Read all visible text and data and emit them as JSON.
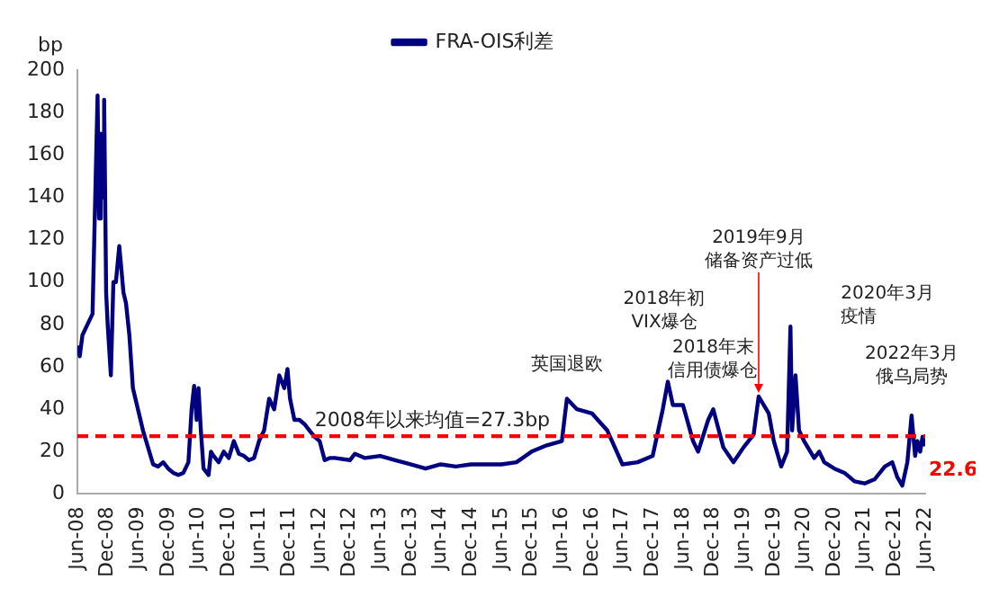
{
  "chart_data": {
    "type": "line",
    "ylabel": "bp",
    "legend": "top",
    "grid": false,
    "marker": "none",
    "line_style": "solid",
    "xlim": [
      "2008-06",
      "2022-06"
    ],
    "xticks": [
      {
        "value": "2008-06",
        "label": "Jun-08"
      },
      {
        "value": "2008-12",
        "label": "Dec-08"
      },
      {
        "value": "2009-06",
        "label": "Jun-09"
      },
      {
        "value": "2009-12",
        "label": "Dec-09"
      },
      {
        "value": "2010-06",
        "label": "Jun-10"
      },
      {
        "value": "2010-12",
        "label": "Dec-10"
      },
      {
        "value": "2011-06",
        "label": "Jun-11"
      },
      {
        "value": "2011-12",
        "label": "Dec-11"
      },
      {
        "value": "2012-06",
        "label": "Jun-12"
      },
      {
        "value": "2012-12",
        "label": "Dec-12"
      },
      {
        "value": "2013-06",
        "label": "Jun-13"
      },
      {
        "value": "2013-12",
        "label": "Dec-13"
      },
      {
        "value": "2014-06",
        "label": "Jun-14"
      },
      {
        "value": "2014-12",
        "label": "Dec-14"
      },
      {
        "value": "2015-06",
        "label": "Jun-15"
      },
      {
        "value": "2015-12",
        "label": "Dec-15"
      },
      {
        "value": "2016-06",
        "label": "Jun-16"
      },
      {
        "value": "2016-12",
        "label": "Dec-16"
      },
      {
        "value": "2017-06",
        "label": "Jun-17"
      },
      {
        "value": "2017-12",
        "label": "Dec-17"
      },
      {
        "value": "2018-06",
        "label": "Jun-18"
      },
      {
        "value": "2018-12",
        "label": "Dec-18"
      },
      {
        "value": "2019-06",
        "label": "Jun-19"
      },
      {
        "value": "2019-12",
        "label": "Dec-19"
      },
      {
        "value": "2020-06",
        "label": "Jun-20"
      },
      {
        "value": "2020-12",
        "label": "Dec-20"
      },
      {
        "value": "2021-06",
        "label": "Jun-21"
      },
      {
        "value": "2021-12",
        "label": "Dec-21"
      },
      {
        "value": "2022-06",
        "label": "Jun-22"
      }
    ],
    "ylim": [
      0,
      200
    ],
    "yticks": [
      0,
      20,
      40,
      60,
      80,
      100,
      120,
      140,
      160,
      180,
      200
    ],
    "series": [
      {
        "name": "FRA-OIS利差",
        "color": "#000080",
        "x": [
          "2008-06-01",
          "2008-06-15",
          "2008-07-01",
          "2008-08-01",
          "2008-09-01",
          "2008-09-20",
          "2008-10-01",
          "2008-10-10",
          "2008-10-20",
          "2008-11-01",
          "2008-11-10",
          "2008-11-22",
          "2008-12-01",
          "2008-12-20",
          "2009-01-05",
          "2009-01-20",
          "2009-02-10",
          "2009-03-05",
          "2009-03-20",
          "2009-04-10",
          "2009-05-01",
          "2009-06-01",
          "2009-07-01",
          "2009-08-01",
          "2009-09-01",
          "2009-10-01",
          "2009-11-01",
          "2009-12-01",
          "2010-01-01",
          "2010-02-01",
          "2010-03-01",
          "2010-04-01",
          "2010-04-20",
          "2010-05-05",
          "2010-05-20",
          "2010-06-01",
          "2010-06-15",
          "2010-07-01",
          "2010-08-01",
          "2010-08-15",
          "2010-09-01",
          "2010-10-01",
          "2010-11-01",
          "2010-12-01",
          "2011-01-01",
          "2011-02-01",
          "2011-03-01",
          "2011-04-01",
          "2011-05-01",
          "2011-06-01",
          "2011-07-01",
          "2011-08-01",
          "2011-09-01",
          "2011-10-01",
          "2011-11-01",
          "2011-11-20",
          "2011-12-05",
          "2012-01-01",
          "2012-02-01",
          "2012-03-01",
          "2012-04-01",
          "2012-05-01",
          "2012-06-01",
          "2012-07-01",
          "2012-08-01",
          "2012-09-01",
          "2012-12-01",
          "2013-01-01",
          "2013-03-01",
          "2013-06-01",
          "2013-09-01",
          "2013-12-01",
          "2014-03-01",
          "2014-06-01",
          "2014-09-01",
          "2014-12-01",
          "2015-03-01",
          "2015-06-01",
          "2015-09-01",
          "2015-12-01",
          "2016-03-01",
          "2016-06-01",
          "2016-07-01",
          "2016-09-01",
          "2016-12-01",
          "2017-03-01",
          "2017-06-01",
          "2017-09-01",
          "2017-12-01",
          "2018-02-01",
          "2018-03-01",
          "2018-04-01",
          "2018-06-01",
          "2018-08-01",
          "2018-09-01",
          "2018-11-01",
          "2018-12-01",
          "2019-02-01",
          "2019-04-01",
          "2019-06-01",
          "2019-08-01",
          "2019-09-01",
          "2019-10-01",
          "2019-11-01",
          "2019-12-01",
          "2020-01-15",
          "2020-02-20",
          "2020-03-10",
          "2020-03-20",
          "2020-04-10",
          "2020-05-01",
          "2020-06-01",
          "2020-08-01",
          "2020-09-01",
          "2020-10-01",
          "2020-12-01",
          "2021-02-01",
          "2021-04-01",
          "2021-06-01",
          "2021-08-01",
          "2021-10-01",
          "2021-11-15",
          "2021-12-15",
          "2022-01-15",
          "2022-02-15",
          "2022-03-10",
          "2022-04-01",
          "2022-04-15",
          "2022-05-01",
          "2022-05-15",
          "2022-06-01"
        ],
        "values": [
          70,
          65,
          75,
          80,
          85,
          150,
          188,
          130,
          170,
          140,
          186,
          95,
          80,
          56,
          100,
          100,
          117,
          95,
          90,
          75,
          50,
          40,
          30,
          22,
          14,
          13,
          15,
          12,
          10,
          9,
          10,
          15,
          40,
          51,
          35,
          50,
          30,
          12,
          9,
          20,
          18,
          15,
          20,
          17,
          25,
          19,
          18,
          16,
          17,
          25,
          30,
          45,
          40,
          56,
          50,
          59,
          45,
          35,
          35,
          33,
          30,
          27,
          25,
          16,
          17,
          17,
          16,
          19,
          17,
          18,
          16,
          14,
          12,
          14,
          13,
          14,
          14,
          14,
          15,
          20,
          23,
          25,
          45,
          40,
          38,
          30,
          14,
          15,
          18,
          40,
          53,
          42,
          42,
          25,
          20,
          35,
          40,
          22,
          15,
          22,
          28,
          46,
          42,
          38,
          25,
          13,
          20,
          79,
          30,
          56,
          30,
          25,
          17,
          20,
          15,
          12,
          10,
          6,
          5,
          7,
          13,
          15,
          8,
          4,
          15,
          37,
          18,
          25,
          20,
          27,
          22.6
        ],
        "value_labels": [
          null,
          null,
          null,
          null,
          null,
          null,
          null,
          null,
          null,
          null,
          null,
          null,
          null,
          null,
          null,
          null,
          null,
          null,
          null,
          null,
          null,
          null,
          null,
          null,
          null,
          null,
          null,
          null,
          null,
          null,
          null,
          null,
          null,
          null,
          null,
          null,
          null,
          null,
          null,
          null,
          null,
          null,
          null,
          null,
          null,
          null,
          null,
          null,
          null,
          null,
          null,
          null,
          null,
          null,
          null,
          null,
          null,
          null,
          null,
          null,
          null,
          null,
          null,
          null,
          null,
          null,
          null,
          null,
          null,
          null,
          null,
          null,
          null,
          null,
          null,
          null,
          null,
          null,
          null,
          null,
          null,
          null,
          null,
          null,
          null,
          null,
          null,
          null,
          null,
          null,
          null,
          null,
          null,
          null,
          null,
          null,
          null,
          null,
          null,
          null,
          null,
          null,
          null,
          null,
          null,
          null,
          null,
          null,
          null,
          null,
          null,
          null,
          null,
          null,
          null,
          null,
          null,
          null,
          null,
          null,
          null,
          null,
          null,
          null,
          null,
          null,
          null,
          null,
          null,
          null,
          "22.6"
        ]
      }
    ],
    "ref_lines": [
      {
        "axis": "y",
        "value": 27.3,
        "label": "2008年以来均值=27.3bp",
        "color": "#ff0000",
        "line_style": "dashed"
      }
    ],
    "annotations": [
      {
        "text": "英国退欧",
        "x": "2016-07-01",
        "y": 45
      },
      {
        "text": "2018年初VIX爆仓",
        "x": "2018-03-01",
        "y": 53
      },
      {
        "text": "2018年末信用债爆仓",
        "x": "2018-12-01",
        "y": 40
      },
      {
        "text": "2019年9月储备资产过低",
        "x": "2019-09-01",
        "y": 46
      },
      {
        "text": "2020年3月疫情",
        "x": "2020-03-10",
        "y": 79
      },
      {
        "text": "2022年3月俄乌局势",
        "x": "2022-03-10",
        "y": 37
      }
    ]
  }
}
